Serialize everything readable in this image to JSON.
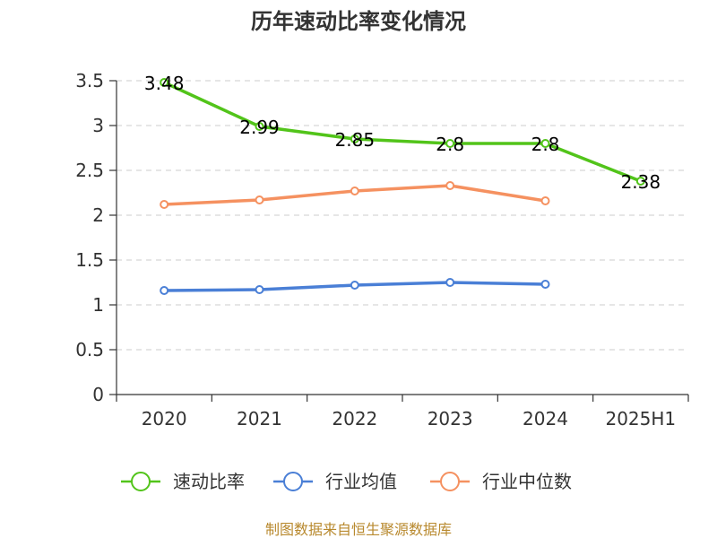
{
  "chart_data": {
    "type": "line",
    "title": "历年速动比率变化情况",
    "categories": [
      "2020",
      "2021",
      "2022",
      "2023",
      "2024",
      "2025H1"
    ],
    "ylim": [
      0,
      3.5
    ],
    "yticks": [
      "0",
      "0.5",
      "1",
      "1.5",
      "2",
      "2.5",
      "3",
      "3.5"
    ],
    "ytick_values": [
      0,
      0.5,
      1,
      1.5,
      2,
      2.5,
      3,
      3.5
    ],
    "grid": "horizontal-dashed",
    "legend_position": "bottom",
    "series": [
      {
        "name": "速动比率",
        "color": "#52c41a",
        "values": [
          3.48,
          2.99,
          2.85,
          2.8,
          2.8,
          2.38
        ],
        "labels": [
          "3.48",
          "2.99",
          "2.85",
          "2.8",
          "2.8",
          "2.38"
        ]
      },
      {
        "name": "行业均值",
        "color": "#4a7fd6",
        "values": [
          1.16,
          1.17,
          1.22,
          1.25,
          1.23,
          null
        ]
      },
      {
        "name": "行业中位数",
        "color": "#f59160",
        "values": [
          2.12,
          2.17,
          2.27,
          2.33,
          2.16,
          null
        ]
      }
    ]
  },
  "source": "制图数据来自恒生聚源数据库"
}
